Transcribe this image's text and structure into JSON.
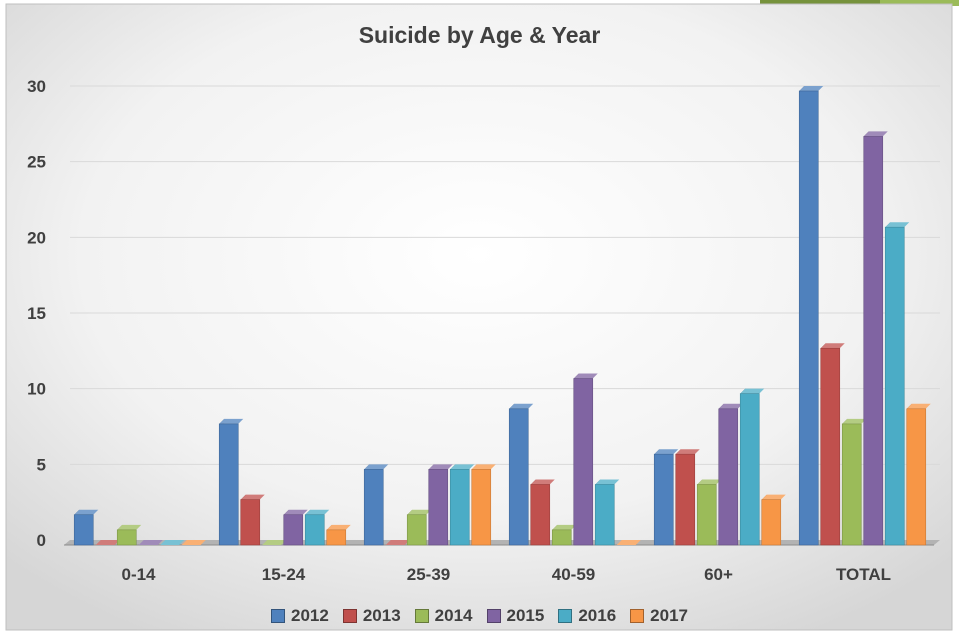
{
  "chart_data": {
    "type": "bar",
    "title": "Suicide by Age & Year",
    "xlabel": "",
    "ylabel": "",
    "categories": [
      "0-14",
      "15-24",
      "25-39",
      "40-59",
      "60+",
      "TOTAL"
    ],
    "ylim": [
      0,
      30
    ],
    "yticks": [
      "0",
      "5",
      "10",
      "15",
      "20",
      "25",
      "30"
    ],
    "grid": true,
    "legend_position": "bottom",
    "series": [
      {
        "name": "2012",
        "color": "#4F81BD",
        "values": [
          2,
          8,
          5,
          9,
          6,
          30
        ]
      },
      {
        "name": "2013",
        "color": "#C0504D",
        "values": [
          0,
          3,
          0,
          4,
          6,
          13
        ]
      },
      {
        "name": "2014",
        "color": "#9BBB59",
        "values": [
          1,
          0,
          2,
          1,
          4,
          8
        ]
      },
      {
        "name": "2015",
        "color": "#8064A2",
        "values": [
          0,
          2,
          5,
          11,
          9,
          27
        ]
      },
      {
        "name": "2016",
        "color": "#4BACC6",
        "values": [
          0,
          2,
          5,
          4,
          10,
          21
        ]
      },
      {
        "name": "2017",
        "color": "#F79646",
        "values": [
          0,
          1,
          5,
          0,
          3,
          9
        ]
      }
    ]
  }
}
